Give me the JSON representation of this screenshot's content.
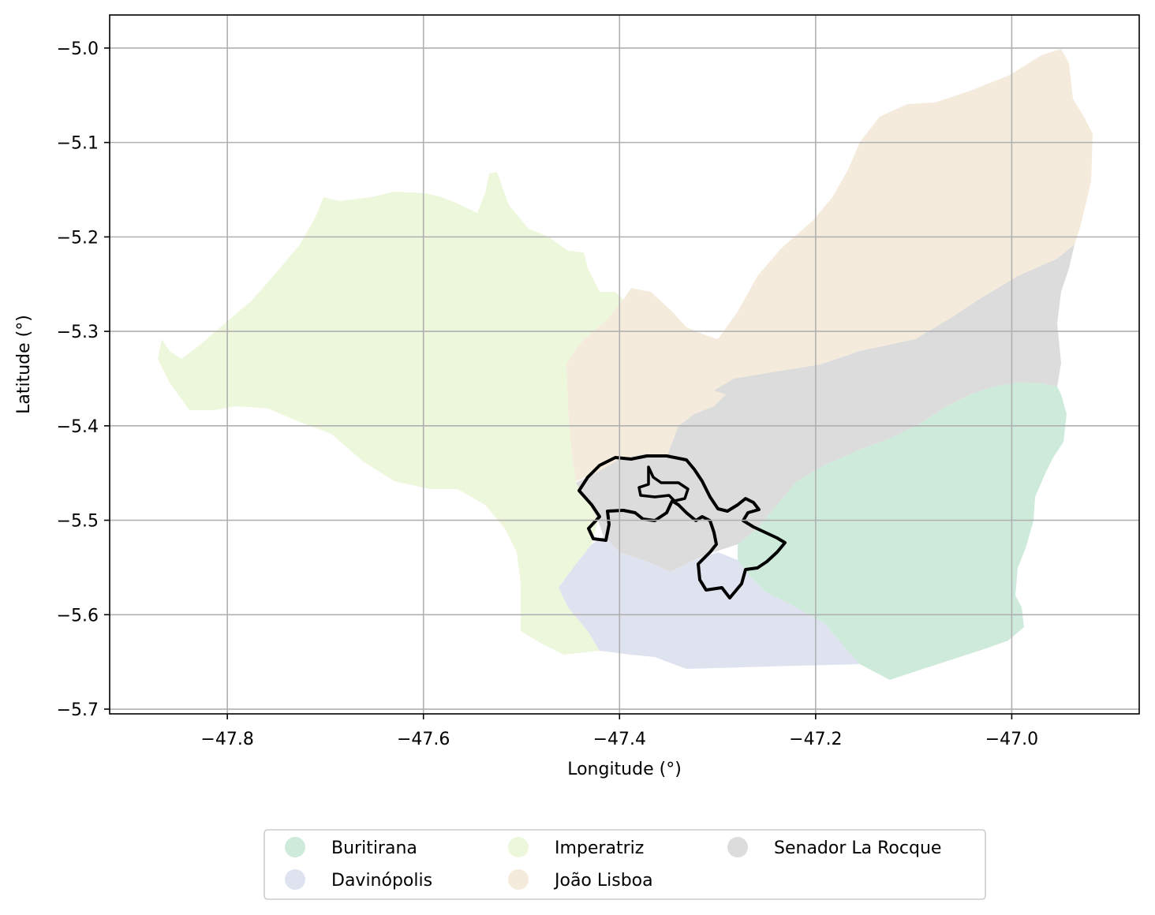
{
  "chart_data": {
    "type": "map",
    "xlabel": "Longitude (°)",
    "ylabel": "Latitude (°)",
    "xlim": [
      -47.92,
      -46.87
    ],
    "ylim": [
      -5.705,
      -4.965
    ],
    "x_ticks": [
      {
        "value": -47.8,
        "label": "−47.8"
      },
      {
        "value": -47.6,
        "label": "−47.6"
      },
      {
        "value": -47.4,
        "label": "−47.4"
      },
      {
        "value": -47.2,
        "label": "−47.2"
      },
      {
        "value": -47.0,
        "label": "−47.0"
      }
    ],
    "y_ticks": [
      {
        "value": -5.0,
        "label": "−5.0"
      },
      {
        "value": -5.1,
        "label": "−5.1"
      },
      {
        "value": -5.2,
        "label": "−5.2"
      },
      {
        "value": -5.3,
        "label": "−5.3"
      },
      {
        "value": -5.4,
        "label": "−5.4"
      },
      {
        "value": -5.5,
        "label": "−5.5"
      },
      {
        "value": -5.6,
        "label": "−5.6"
      },
      {
        "value": -5.7,
        "label": "−5.7"
      }
    ],
    "grid": true,
    "legend_position": "bottom-center",
    "regions": [
      {
        "name": "Buritirana",
        "color": "#cdeadb"
      },
      {
        "name": "Davinópolis",
        "color": "#dfe3f0"
      },
      {
        "name": "Imperatriz",
        "color": "#edf7dc"
      },
      {
        "name": "João Lisboa",
        "color": "#f4ebdc"
      },
      {
        "name": "Senador La Rocque",
        "color": "#dcdcdc"
      }
    ]
  }
}
